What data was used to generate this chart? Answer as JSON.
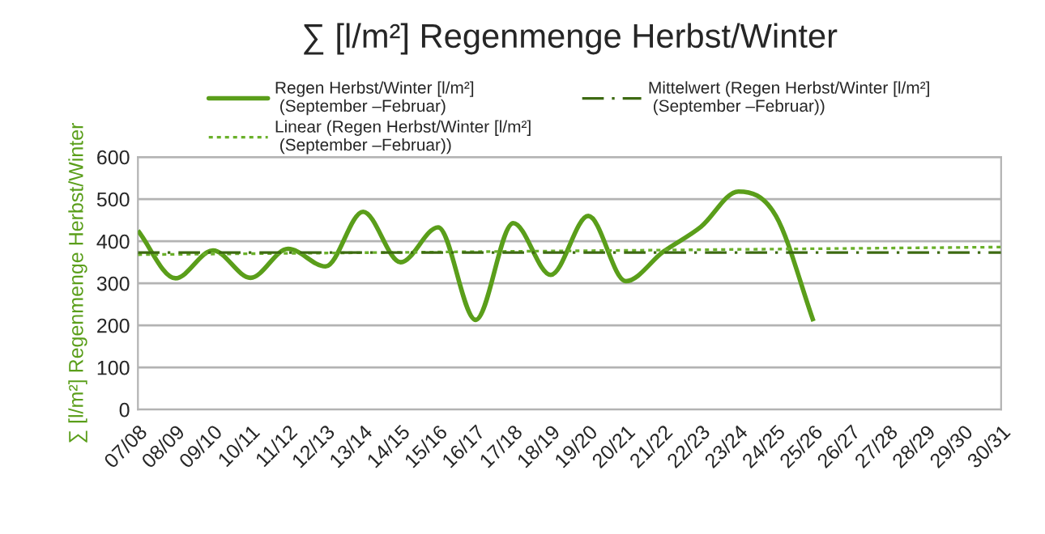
{
  "chart_data": {
    "type": "line",
    "title": "∑ [l/m²] Regenmenge Herbst/Winter",
    "ylabel": "∑ [l/m²] Regenmenge Herbst/Winter",
    "categories": [
      "07/08",
      "08/09",
      "09/10",
      "10/11",
      "11/12",
      "12/13",
      "13/14",
      "14/15",
      "15/16",
      "16/17",
      "17/18",
      "18/19",
      "19/20",
      "20/21",
      "21/22",
      "22/23",
      "23/24",
      "24/25",
      "25/26",
      "26/27",
      "27/28",
      "28/29",
      "29/30",
      "30/31"
    ],
    "series": [
      {
        "name": "Regen Herbst/Winter [l/m²]\n (September –Februar)",
        "color": "#5a9e1a",
        "line_style": "solid",
        "values": [
          425,
          312,
          378,
          313,
          382,
          340,
          470,
          350,
          433,
          213,
          443,
          320,
          460,
          305,
          375,
          434,
          518,
          460,
          210,
          null,
          null,
          null,
          null,
          null
        ]
      },
      {
        "name": "Linear (Regen Herbst/Winter [l/m²]\n (September –Februar))",
        "color": "#6ab02a",
        "line_style": "dotted",
        "x": [
          "07/08",
          "30/31"
        ],
        "values": [
          368,
          386
        ]
      },
      {
        "name": "Mittelwert (Regen Herbst/Winter [l/m²]\n (September –Februar))",
        "color": "#3d6a12",
        "line_style": "dashed",
        "x": [
          "07/08",
          "30/31"
        ],
        "values": [
          373,
          373
        ]
      }
    ],
    "ylim": [
      0,
      600
    ],
    "yticks": [
      0,
      100,
      200,
      300,
      400,
      500,
      600
    ],
    "grid": "y",
    "legend": "top",
    "marker": "none"
  }
}
